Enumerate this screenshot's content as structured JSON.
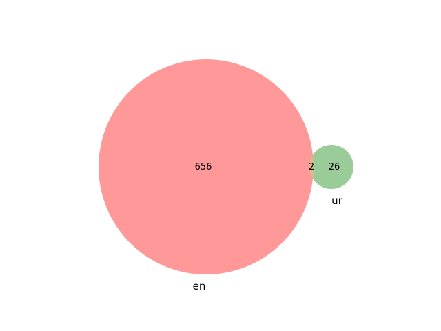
{
  "venn": {
    "sets": [
      {
        "name": "en",
        "only_count": "656",
        "color": "#ff9999"
      },
      {
        "name": "ur",
        "only_count": "26",
        "color": "#99cc99"
      }
    ],
    "intersection": {
      "count": "2",
      "color": "#ddbb88"
    }
  }
}
